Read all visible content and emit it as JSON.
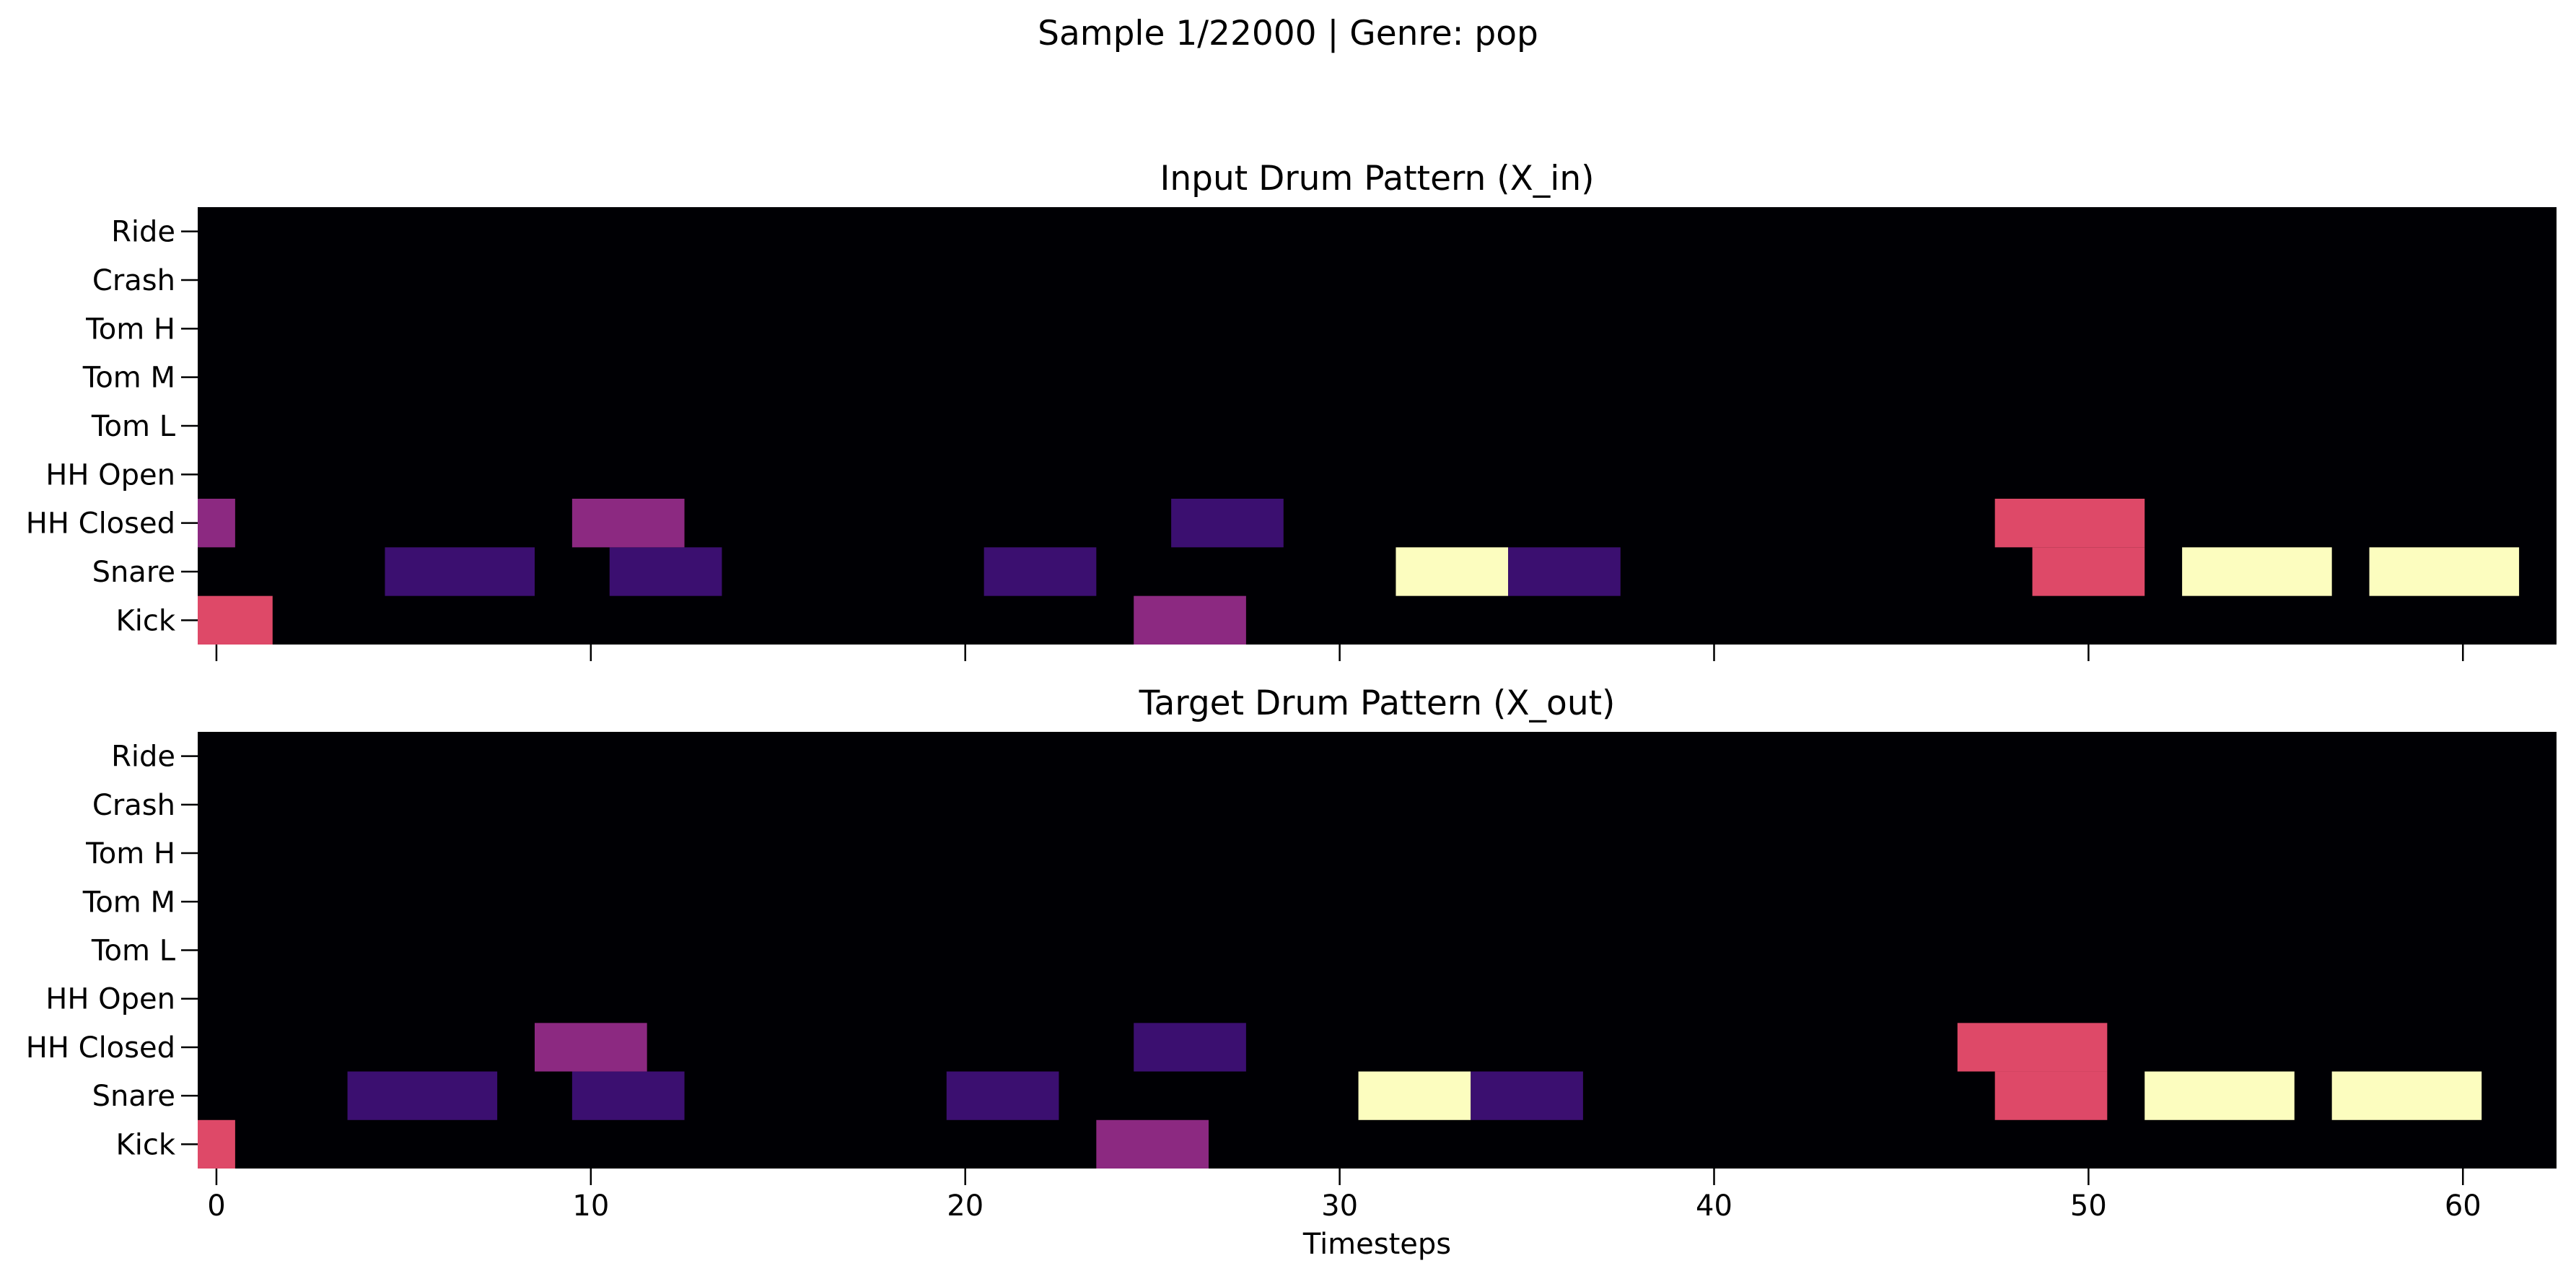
{
  "figure": {
    "title": "Sample 1/22000  |  Genre: pop"
  },
  "colors": {
    "background": "#000004",
    "velocity_scale": [
      "#000004",
      "#3b0f70",
      "#8c2981",
      "#de4968",
      "#fcfdbf"
    ]
  },
  "chart_data": [
    {
      "type": "heatmap",
      "title": "Input Drum Pattern (X_in)",
      "xlabel": "",
      "ylabel": "",
      "instruments": [
        "Kick",
        "Snare",
        "HH Closed",
        "HH Open",
        "Tom L",
        "Tom M",
        "Tom H",
        "Crash",
        "Ride"
      ],
      "xlim": [
        -0.5,
        62.5
      ],
      "xticks": [
        0,
        10,
        20,
        30,
        40,
        50,
        60
      ],
      "x_ticklabels_shown": false,
      "events": [
        {
          "instrument": "Kick",
          "start": 0,
          "end": 1,
          "color": "#de4968"
        },
        {
          "instrument": "Kick",
          "start": 25,
          "end": 27,
          "color": "#8c2981"
        },
        {
          "instrument": "Snare",
          "start": 5,
          "end": 8,
          "color": "#3b0f70"
        },
        {
          "instrument": "Snare",
          "start": 11,
          "end": 13,
          "color": "#3b0f70"
        },
        {
          "instrument": "Snare",
          "start": 21,
          "end": 23,
          "color": "#3b0f70"
        },
        {
          "instrument": "Snare",
          "start": 32,
          "end": 34,
          "color": "#fcfdbf"
        },
        {
          "instrument": "Snare",
          "start": 35,
          "end": 37,
          "color": "#3b0f70"
        },
        {
          "instrument": "Snare",
          "start": 49,
          "end": 51,
          "color": "#de4968"
        },
        {
          "instrument": "Snare",
          "start": 53,
          "end": 56,
          "color": "#fcfdbf"
        },
        {
          "instrument": "Snare",
          "start": 58,
          "end": 61,
          "color": "#fcfdbf"
        },
        {
          "instrument": "HH Closed",
          "start": 0,
          "end": 0,
          "color": "#8c2981"
        },
        {
          "instrument": "HH Closed",
          "start": 10,
          "end": 12,
          "color": "#8c2981"
        },
        {
          "instrument": "HH Closed",
          "start": 26,
          "end": 28,
          "color": "#3b0f70"
        },
        {
          "instrument": "HH Closed",
          "start": 48,
          "end": 51,
          "color": "#de4968"
        }
      ]
    },
    {
      "type": "heatmap",
      "title": "Target Drum Pattern (X_out)",
      "xlabel": "Timesteps",
      "ylabel": "",
      "instruments": [
        "Kick",
        "Snare",
        "HH Closed",
        "HH Open",
        "Tom L",
        "Tom M",
        "Tom H",
        "Crash",
        "Ride"
      ],
      "xlim": [
        -0.5,
        62.5
      ],
      "xticks": [
        0,
        10,
        20,
        30,
        40,
        50,
        60
      ],
      "x_ticklabels_shown": true,
      "events": [
        {
          "instrument": "Kick",
          "start": 0,
          "end": 0,
          "color": "#de4968"
        },
        {
          "instrument": "Kick",
          "start": 24,
          "end": 26,
          "color": "#8c2981"
        },
        {
          "instrument": "Snare",
          "start": 4,
          "end": 7,
          "color": "#3b0f70"
        },
        {
          "instrument": "Snare",
          "start": 10,
          "end": 12,
          "color": "#3b0f70"
        },
        {
          "instrument": "Snare",
          "start": 20,
          "end": 22,
          "color": "#3b0f70"
        },
        {
          "instrument": "Snare",
          "start": 31,
          "end": 33,
          "color": "#fcfdbf"
        },
        {
          "instrument": "Snare",
          "start": 34,
          "end": 36,
          "color": "#3b0f70"
        },
        {
          "instrument": "Snare",
          "start": 48,
          "end": 50,
          "color": "#de4968"
        },
        {
          "instrument": "Snare",
          "start": 52,
          "end": 55,
          "color": "#fcfdbf"
        },
        {
          "instrument": "Snare",
          "start": 57,
          "end": 60,
          "color": "#fcfdbf"
        },
        {
          "instrument": "HH Closed",
          "start": 9,
          "end": 11,
          "color": "#8c2981"
        },
        {
          "instrument": "HH Closed",
          "start": 25,
          "end": 27,
          "color": "#3b0f70"
        },
        {
          "instrument": "HH Closed",
          "start": 47,
          "end": 50,
          "color": "#de4968"
        }
      ]
    }
  ]
}
